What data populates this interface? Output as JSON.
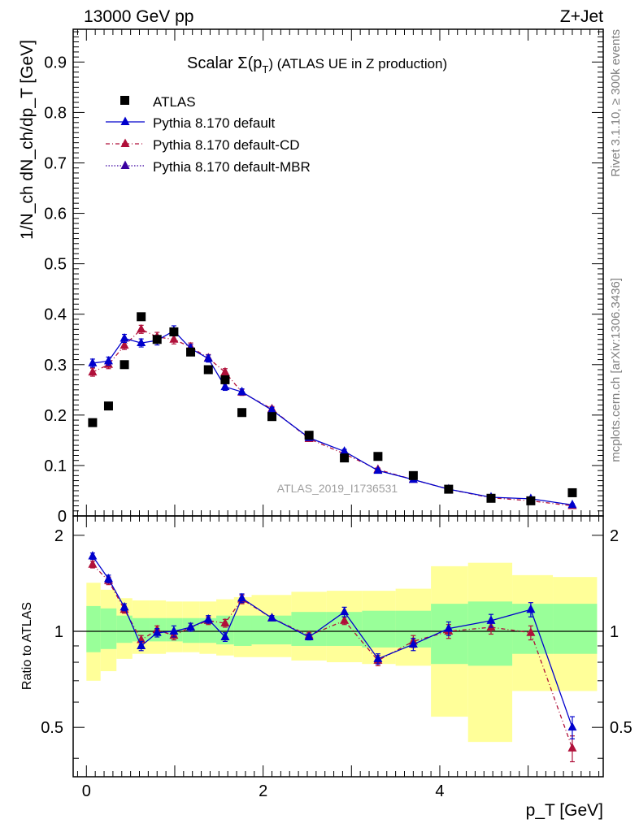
{
  "chart_data": {
    "type": "scatter",
    "header_left": "13000 GeV pp",
    "header_right": "Z+Jet",
    "title_prefix": "Scalar Σ(p",
    "title_sub": "T",
    "title_suffix": ") (ATLAS UE in Z production)",
    "ylabel_main": "1/N_ch dN_ch/dp_T [GeV]",
    "ylabel_ratio": "Ratio to ATLAS",
    "xlabel": "p_T [GeV]",
    "side_label_top": "Rivet 3.1.10, ≥ 300k events",
    "side_label_bottom": "mcplots.cern.ch [arXiv:1306.3436]",
    "watermark": "ATLAS_2019_I1736531",
    "xlim": [
      -0.15,
      5.85
    ],
    "ylim_main": [
      0,
      0.965
    ],
    "ylim_ratio": [
      0.35,
      2.3
    ],
    "x_ticks": [
      0,
      2,
      4
    ],
    "x_tick_labels": [
      "0",
      "2",
      "4"
    ],
    "y_ticks_main": [
      0,
      0.1,
      0.2,
      0.3,
      0.4,
      0.5,
      0.6,
      0.7,
      0.8,
      0.9
    ],
    "y_tick_labels_main": [
      "0",
      "0.1",
      "0.2",
      "0.3",
      "0.4",
      "0.5",
      "0.6",
      "0.7",
      "0.8",
      "0.9"
    ],
    "y_ticks_ratio": [
      0.5,
      1,
      2
    ],
    "y_tick_labels_ratio": [
      "0.5",
      "1",
      "2"
    ],
    "colors": {
      "data": "#000000",
      "default": "#0000cc",
      "cd": "#b0103a",
      "mbr": "#3a00a0",
      "band_inner": "#99ff99",
      "band_outer": "#ffff99"
    },
    "legend": [
      {
        "name": "ATLAS",
        "key": "data"
      },
      {
        "name": "Pythia 8.170 default",
        "key": "default"
      },
      {
        "name": "Pythia 8.170 default-CD",
        "key": "cd"
      },
      {
        "name": "Pythia 8.170 default-MBR",
        "key": "mbr"
      }
    ],
    "x": [
      0.07,
      0.25,
      0.43,
      0.62,
      0.8,
      0.99,
      1.18,
      1.38,
      1.57,
      1.76,
      2.1,
      2.52,
      2.92,
      3.3,
      3.7,
      4.1,
      4.58,
      5.03,
      5.5
    ],
    "bin_edges": [
      0.0,
      0.16,
      0.34,
      0.52,
      0.71,
      0.9,
      1.09,
      1.28,
      1.47,
      1.67,
      1.87,
      2.32,
      2.72,
      3.12,
      3.5,
      3.9,
      4.32,
      4.82,
      5.28,
      5.78
    ],
    "atlas": [
      0.185,
      0.218,
      0.3,
      0.395,
      0.35,
      0.365,
      0.325,
      0.29,
      0.27,
      0.205,
      0.197,
      0.16,
      0.115,
      0.118,
      0.08,
      0.053,
      0.035,
      0.03,
      0.046
    ],
    "default": [
      0.303,
      0.307,
      0.352,
      0.343,
      0.348,
      0.367,
      0.332,
      0.312,
      0.256,
      0.246,
      0.21,
      0.155,
      0.128,
      0.09,
      0.072,
      0.053,
      0.037,
      0.034,
      0.022
    ],
    "default_err": [
      0.008,
      0.008,
      0.008,
      0.008,
      0.009,
      0.01,
      0.008,
      0.007,
      0.007,
      0.006,
      0.005,
      0.004,
      0.004,
      0.003,
      0.003,
      0.003,
      0.002,
      0.002,
      0.002
    ],
    "cd": [
      0.285,
      0.3,
      0.338,
      0.37,
      0.355,
      0.35,
      0.335,
      0.313,
      0.285,
      0.245,
      0.212,
      0.153,
      0.123,
      0.092,
      0.072,
      0.053,
      0.036,
      0.03,
      0.02
    ],
    "cd_err": [
      0.008,
      0.008,
      0.008,
      0.008,
      0.009,
      0.009,
      0.008,
      0.007,
      0.007,
      0.006,
      0.005,
      0.004,
      0.004,
      0.003,
      0.003,
      0.003,
      0.002,
      0.002,
      0.002
    ],
    "ratio_default": [
      1.72,
      1.46,
      1.19,
      0.9,
      0.99,
      1.0,
      1.03,
      1.09,
      0.96,
      1.27,
      1.1,
      0.96,
      1.15,
      0.82,
      0.91,
      1.02,
      1.08,
      1.17,
      0.5
    ],
    "ratio_default_err": [
      0.04,
      0.04,
      0.03,
      0.03,
      0.03,
      0.04,
      0.03,
      0.03,
      0.03,
      0.04,
      0.02,
      0.02,
      0.04,
      0.03,
      0.04,
      0.05,
      0.05,
      0.06,
      0.04
    ],
    "ratio_cd": [
      1.62,
      1.44,
      1.17,
      0.94,
      1.01,
      0.97,
      1.03,
      1.08,
      1.06,
      1.26,
      1.1,
      0.97,
      1.08,
      0.81,
      0.93,
      1.0,
      1.03,
      0.99,
      0.43
    ],
    "ratio_cd_err": [
      0.04,
      0.04,
      0.03,
      0.03,
      0.03,
      0.03,
      0.03,
      0.03,
      0.03,
      0.04,
      0.02,
      0.02,
      0.03,
      0.03,
      0.04,
      0.05,
      0.05,
      0.05,
      0.04
    ],
    "band_inner": [
      [
        0.86,
        1.2
      ],
      [
        0.88,
        1.18
      ],
      [
        0.92,
        1.12
      ],
      [
        0.93,
        1.1
      ],
      [
        0.93,
        1.1
      ],
      [
        0.93,
        1.1
      ],
      [
        0.92,
        1.1
      ],
      [
        0.92,
        1.1
      ],
      [
        0.91,
        1.12
      ],
      [
        0.9,
        1.12
      ],
      [
        0.91,
        1.12
      ],
      [
        0.9,
        1.15
      ],
      [
        0.9,
        1.15
      ],
      [
        0.89,
        1.16
      ],
      [
        0.89,
        1.16
      ],
      [
        0.79,
        1.22
      ],
      [
        0.78,
        1.24
      ],
      [
        0.85,
        1.22
      ],
      [
        0.85,
        1.22
      ]
    ],
    "band_outer": [
      [
        0.7,
        1.42
      ],
      [
        0.75,
        1.35
      ],
      [
        0.82,
        1.27
      ],
      [
        0.85,
        1.25
      ],
      [
        0.85,
        1.25
      ],
      [
        0.86,
        1.24
      ],
      [
        0.86,
        1.24
      ],
      [
        0.85,
        1.24
      ],
      [
        0.84,
        1.26
      ],
      [
        0.83,
        1.28
      ],
      [
        0.83,
        1.3
      ],
      [
        0.81,
        1.33
      ],
      [
        0.8,
        1.34
      ],
      [
        0.79,
        1.34
      ],
      [
        0.78,
        1.36
      ],
      [
        0.54,
        1.6
      ],
      [
        0.45,
        1.64
      ],
      [
        0.65,
        1.5
      ],
      [
        0.65,
        1.48
      ]
    ]
  }
}
